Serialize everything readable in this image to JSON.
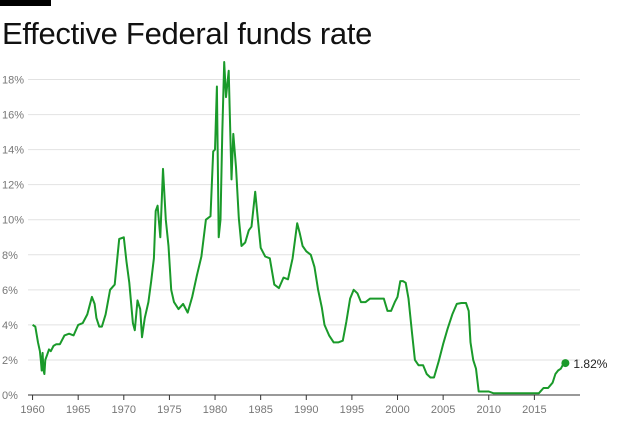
{
  "title": "Effective Federal funds rate",
  "colors": {
    "line": "#1a9a2a",
    "grid": "#e2e2e2",
    "axis": "#333333",
    "text": "#777777"
  },
  "chart_data": {
    "type": "line",
    "title": "Effective Federal funds rate",
    "xlabel": "",
    "ylabel": "",
    "xlim": [
      1959.5,
      2020
    ],
    "ylim": [
      0,
      19
    ],
    "grid": true,
    "x_ticks": [
      1960,
      1965,
      1970,
      1975,
      1980,
      1985,
      1990,
      1995,
      2000,
      2005,
      2010,
      2015
    ],
    "x_tick_labels": [
      "1960",
      "1965",
      "1970",
      "1975",
      "1980",
      "1985",
      "1990",
      "1995",
      "2000",
      "2005",
      "2010",
      "2015"
    ],
    "y_ticks": [
      0,
      2,
      4,
      6,
      8,
      10,
      12,
      14,
      16,
      18
    ],
    "y_tick_labels": [
      "0%",
      "2%",
      "4%",
      "6%",
      "8%",
      "10%",
      "12%",
      "14%",
      "16%",
      "18%"
    ],
    "end_label": "1.82%",
    "series": [
      {
        "x": [
          1960.0,
          1960.3,
          1960.6,
          1960.8,
          1960.9,
          1961.0,
          1961.1,
          1961.2,
          1961.3,
          1961.4,
          1961.6,
          1961.8,
          1962.0,
          1962.3,
          1962.6,
          1963.0,
          1963.5,
          1964.0,
          1964.5,
          1965.0,
          1965.5,
          1966.0,
          1966.5,
          1966.8,
          1967.0,
          1967.3,
          1967.6,
          1968.0,
          1968.5,
          1969.0,
          1969.5,
          1970.0,
          1970.3,
          1970.6,
          1971.0,
          1971.2,
          1971.5,
          1971.8,
          1972.0,
          1972.3,
          1972.7,
          1973.0,
          1973.3,
          1973.5,
          1973.7,
          1974.0,
          1974.3,
          1974.6,
          1974.9,
          1975.2,
          1975.5,
          1976.0,
          1976.5,
          1977.0,
          1977.5,
          1978.0,
          1978.5,
          1979.0,
          1979.5,
          1979.8,
          1980.0,
          1980.2,
          1980.4,
          1980.6,
          1980.8,
          1981.0,
          1981.2,
          1981.5,
          1981.8,
          1982.0,
          1982.3,
          1982.6,
          1982.9,
          1983.3,
          1983.7,
          1984.0,
          1984.4,
          1984.7,
          1985.0,
          1985.5,
          1986.0,
          1986.5,
          1987.0,
          1987.5,
          1988.0,
          1988.5,
          1989.0,
          1989.3,
          1989.6,
          1990.0,
          1990.5,
          1990.9,
          1991.3,
          1991.7,
          1992.0,
          1992.5,
          1993.0,
          1993.5,
          1994.0,
          1994.4,
          1994.8,
          1995.2,
          1995.6,
          1996.0,
          1996.5,
          1997.0,
          1997.5,
          1998.0,
          1998.5,
          1998.9,
          1999.3,
          1999.7,
          2000.0,
          2000.3,
          2000.6,
          2000.9,
          2001.2,
          2001.6,
          2001.9,
          2002.3,
          2002.8,
          2003.2,
          2003.6,
          2004.0,
          2004.5,
          2005.0,
          2005.5,
          2006.0,
          2006.5,
          2007.0,
          2007.5,
          2007.8,
          2008.0,
          2008.3,
          2008.6,
          2008.9,
          2009.2,
          2009.6,
          2010.0,
          2010.5,
          2011.0,
          2011.5,
          2012.0,
          2012.5,
          2013.0,
          2013.5,
          2014.0,
          2014.5,
          2015.0,
          2015.5,
          2016.0,
          2016.5,
          2017.0,
          2017.3,
          2017.6,
          2017.9,
          2018.2,
          2018.4
        ],
        "values": [
          4.0,
          3.9,
          3.0,
          2.5,
          2.0,
          1.4,
          2.4,
          1.4,
          1.2,
          2.0,
          2.3,
          2.6,
          2.5,
          2.8,
          2.9,
          2.9,
          3.4,
          3.5,
          3.4,
          4.0,
          4.1,
          4.6,
          5.6,
          5.2,
          4.4,
          3.9,
          3.9,
          4.6,
          6.0,
          6.3,
          8.9,
          9.0,
          7.6,
          6.4,
          4.1,
          3.7,
          5.4,
          4.9,
          3.3,
          4.4,
          5.3,
          6.5,
          7.8,
          10.5,
          10.8,
          9.0,
          12.9,
          10.0,
          8.5,
          6.0,
          5.3,
          4.9,
          5.2,
          4.7,
          5.6,
          6.8,
          7.9,
          10.0,
          10.2,
          13.9,
          14.0,
          17.6,
          9.0,
          10.0,
          15.0,
          19.0,
          17.0,
          18.5,
          12.3,
          14.9,
          13.0,
          10.1,
          8.5,
          8.7,
          9.4,
          9.6,
          11.6,
          10.0,
          8.4,
          7.9,
          7.8,
          6.3,
          6.1,
          6.7,
          6.6,
          7.8,
          9.8,
          9.2,
          8.5,
          8.2,
          8.0,
          7.3,
          6.0,
          5.0,
          4.0,
          3.4,
          3.0,
          3.0,
          3.1,
          4.2,
          5.5,
          6.0,
          5.8,
          5.3,
          5.3,
          5.5,
          5.5,
          5.5,
          5.5,
          4.8,
          4.8,
          5.3,
          5.6,
          6.5,
          6.5,
          6.4,
          5.5,
          3.5,
          2.0,
          1.7,
          1.7,
          1.2,
          1.0,
          1.0,
          1.9,
          2.9,
          3.8,
          4.6,
          5.2,
          5.25,
          5.25,
          4.8,
          3.0,
          2.0,
          1.5,
          0.2,
          0.2,
          0.2,
          0.2,
          0.1,
          0.1,
          0.1,
          0.1,
          0.1,
          0.1,
          0.1,
          0.1,
          0.1,
          0.1,
          0.1,
          0.4,
          0.4,
          0.7,
          1.2,
          1.4,
          1.5,
          1.8,
          1.82
        ]
      }
    ]
  }
}
